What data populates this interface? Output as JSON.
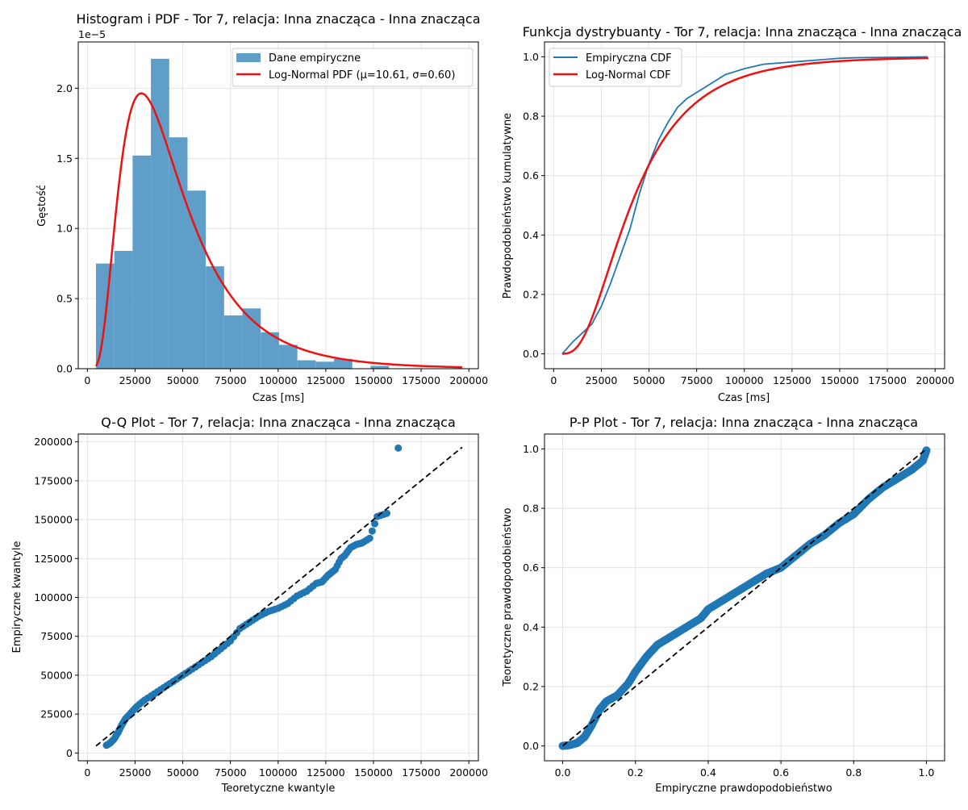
{
  "colors": {
    "hist": "#5f9ec9",
    "empirical": "#1f77b4",
    "fit": "#ee1111",
    "reference": "#000000",
    "grid": "#dddddd"
  },
  "chart_data": [
    {
      "type": "bar",
      "title": "Histogram i PDF - Tor 7, relacja: Inna znacząca - Inna znacząca",
      "xlabel": "Czas [ms]",
      "ylabel": "Gęstość",
      "y_offset_label": "1e−5",
      "xlim": [
        -4800,
        205000
      ],
      "ylim": [
        0,
        2.33
      ],
      "x_ticks": [
        0,
        25000,
        50000,
        75000,
        100000,
        125000,
        150000,
        175000,
        200000
      ],
      "y_ticks": [
        0.0,
        0.5,
        1.0,
        1.5,
        2.0
      ],
      "grid": true,
      "legend_position": "upper right",
      "legend": [
        "Dane empiryczne",
        "Log-Normal PDF (μ=10.61, σ=0.60)"
      ],
      "histogram": {
        "name": "Dane empiryczne",
        "bin_edges": [
          4500,
          14100,
          23700,
          33300,
          42900,
          52500,
          62100,
          71700,
          81300,
          90900,
          100500,
          110100,
          119700,
          129300,
          138900,
          148500,
          158100,
          167700,
          177300,
          186900,
          196500
        ],
        "values": [
          0.75,
          0.84,
          1.52,
          2.21,
          1.65,
          1.27,
          0.73,
          0.38,
          0.43,
          0.26,
          0.17,
          0.06,
          0.05,
          0.07,
          0.0,
          0.02,
          0.0,
          0.0,
          0.0,
          0.0
        ]
      },
      "pdf_curve": {
        "name": "Log-Normal PDF (μ=10.61, σ=0.60)",
        "mu": 10.61,
        "sigma": 0.6,
        "x_range": [
          4500,
          196500
        ]
      }
    },
    {
      "type": "line",
      "title": "Funkcja dystrybuanty - Tor 7, relacja: Inna znacząca - Inna znacząca",
      "xlabel": "Czas [ms]",
      "ylabel": "Prawdopodobieństwo kumulatywne",
      "xlim": [
        -4800,
        205000
      ],
      "ylim": [
        -0.05,
        1.05
      ],
      "x_ticks": [
        0,
        25000,
        50000,
        75000,
        100000,
        125000,
        150000,
        175000,
        200000
      ],
      "y_ticks": [
        0.0,
        0.2,
        0.4,
        0.6,
        0.8,
        1.0
      ],
      "grid": true,
      "legend_position": "upper left",
      "legend": [
        "Empiryczna CDF",
        "Log-Normal CDF"
      ],
      "series": [
        {
          "name": "Empiryczna CDF",
          "x": [
            4500,
            10000,
            15000,
            20000,
            25000,
            30000,
            35000,
            40000,
            45000,
            50000,
            55000,
            60000,
            65000,
            70000,
            75000,
            80000,
            85000,
            90000,
            95000,
            100000,
            110000,
            120000,
            130000,
            140000,
            150000,
            160000,
            175000,
            196000
          ],
          "y": [
            0.0,
            0.04,
            0.07,
            0.1,
            0.16,
            0.24,
            0.33,
            0.42,
            0.54,
            0.64,
            0.72,
            0.78,
            0.83,
            0.86,
            0.88,
            0.9,
            0.92,
            0.94,
            0.95,
            0.96,
            0.975,
            0.98,
            0.985,
            0.99,
            0.995,
            0.997,
            0.998,
            1.0
          ]
        },
        {
          "name": "Log-Normal CDF",
          "mu": 10.61,
          "sigma": 0.6,
          "x_range": [
            4500,
            196500
          ]
        }
      ]
    },
    {
      "type": "scatter",
      "title": "Q-Q Plot - Tor 7, relacja: Inna znacząca - Inna znacząca",
      "xlabel": "Teoretyczne kwantyle",
      "ylabel": "Empiryczne kwantyle",
      "xlim": [
        -4800,
        205000
      ],
      "ylim": [
        -5000,
        205000
      ],
      "x_ticks": [
        0,
        25000,
        50000,
        75000,
        100000,
        125000,
        150000,
        175000,
        200000
      ],
      "y_ticks": [
        0,
        25000,
        50000,
        75000,
        100000,
        125000,
        150000,
        175000,
        200000
      ],
      "grid": true,
      "reference_line": [
        [
          4500,
          4500
        ],
        [
          196500,
          196500
        ]
      ],
      "points": {
        "x": [
          10000,
          12000,
          14000,
          16000,
          18000,
          20000,
          23000,
          26000,
          30000,
          35000,
          40000,
          45000,
          50000,
          55000,
          60000,
          65000,
          70000,
          75000,
          80000,
          85000,
          90000,
          95000,
          100000,
          105000,
          110000,
          115000,
          120000,
          123000,
          126000,
          128000,
          130000,
          133000,
          135000,
          138000,
          141000,
          144000,
          148000,
          152000,
          157000,
          163000
        ],
        "y": [
          5000,
          6500,
          9000,
          13000,
          18000,
          22000,
          26000,
          30000,
          34000,
          38000,
          42000,
          46000,
          50000,
          54000,
          58000,
          62000,
          67000,
          72000,
          80000,
          84000,
          88000,
          91000,
          93000,
          96000,
          101000,
          104000,
          109000,
          110000,
          114000,
          116000,
          118000,
          125000,
          127000,
          132000,
          134000,
          135000,
          138000,
          152000,
          154000,
          196000
        ]
      }
    },
    {
      "type": "scatter",
      "title": "P-P Plot - Tor 7, relacja: Inna znacząca - Inna znacząca",
      "xlabel": "Empiryczne prawdopodobieństwo",
      "ylabel": "Teoretyczne prawdopodobieństwo",
      "xlim": [
        -0.05,
        1.05
      ],
      "ylim": [
        -0.05,
        1.05
      ],
      "x_ticks": [
        0.0,
        0.2,
        0.4,
        0.6,
        0.8,
        1.0
      ],
      "y_ticks": [
        0.0,
        0.2,
        0.4,
        0.6,
        0.8,
        1.0
      ],
      "grid": true,
      "reference_line": [
        [
          0,
          0
        ],
        [
          1,
          1
        ]
      ],
      "curve": {
        "x": [
          0.0,
          0.02,
          0.04,
          0.06,
          0.08,
          0.1,
          0.12,
          0.15,
          0.18,
          0.2,
          0.23,
          0.26,
          0.3,
          0.34,
          0.38,
          0.4,
          0.44,
          0.48,
          0.52,
          0.56,
          0.6,
          0.64,
          0.68,
          0.72,
          0.76,
          0.8,
          0.84,
          0.88,
          0.92,
          0.96,
          0.99,
          1.0
        ],
        "y": [
          0.0,
          0.003,
          0.01,
          0.03,
          0.07,
          0.12,
          0.15,
          0.17,
          0.21,
          0.25,
          0.3,
          0.34,
          0.37,
          0.4,
          0.43,
          0.46,
          0.49,
          0.52,
          0.55,
          0.58,
          0.6,
          0.64,
          0.68,
          0.71,
          0.75,
          0.78,
          0.83,
          0.87,
          0.9,
          0.93,
          0.96,
          0.995
        ]
      }
    }
  ]
}
